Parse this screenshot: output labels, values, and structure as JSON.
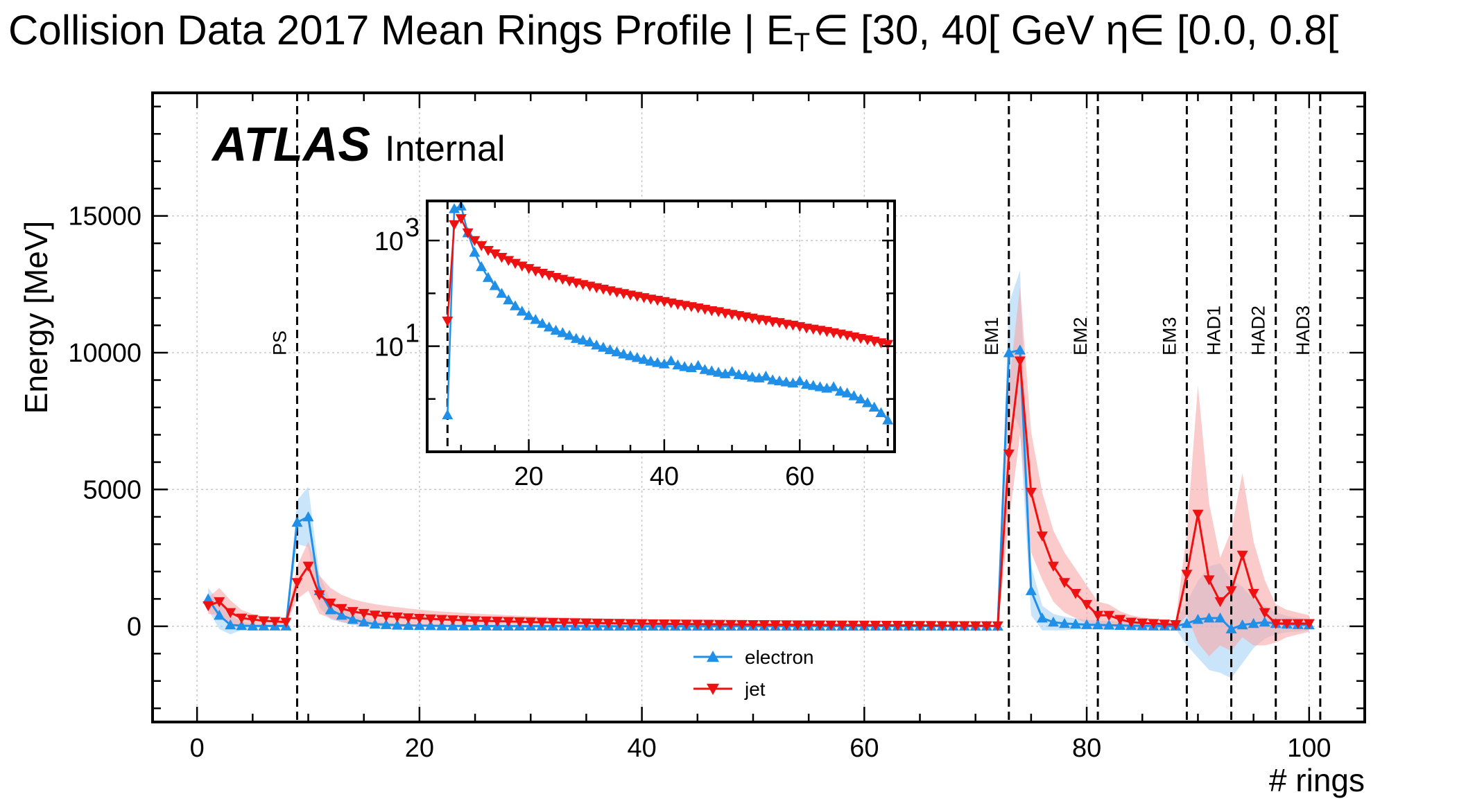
{
  "chart_data": {
    "type": "line",
    "title_main": "Collision Data 2017 Mean Rings Profile | E",
    "title_sub": "T",
    "title_rest": "∈ [30, 40[ GeV η∈ [0.0, 0.8[",
    "xlabel": "# rings",
    "ylabel": "Energy [MeV]",
    "xlim": [
      -4,
      105
    ],
    "ylim": [
      -3500,
      19500
    ],
    "xticks": [
      0,
      20,
      40,
      60,
      80,
      100
    ],
    "yticks": [
      0,
      5000,
      10000,
      15000
    ],
    "grid": true,
    "legend": "bottom-center",
    "branding": {
      "atlas": "ATLAS",
      "status": "Internal"
    },
    "regions": [
      {
        "label": "PS",
        "x": 9
      },
      {
        "label": "EM1",
        "x": 73
      },
      {
        "label": "EM2",
        "x": 81
      },
      {
        "label": "EM3",
        "x": 89
      },
      {
        "label": "HAD1",
        "x": 93
      },
      {
        "label": "HAD2",
        "x": 97
      },
      {
        "label": "HAD3",
        "x": 101
      }
    ],
    "series": [
      {
        "name": "electron",
        "color": "#1f8fe8",
        "band_color": "#a6d2f7",
        "marker": "triangle-up",
        "x": [
          1,
          2,
          3,
          4,
          5,
          6,
          7,
          8,
          9,
          10,
          11,
          12,
          13,
          14,
          15,
          16,
          17,
          18,
          19,
          20,
          21,
          22,
          23,
          24,
          25,
          26,
          27,
          28,
          29,
          30,
          31,
          32,
          33,
          34,
          35,
          36,
          37,
          38,
          39,
          40,
          41,
          42,
          43,
          44,
          45,
          46,
          47,
          48,
          49,
          50,
          51,
          52,
          53,
          54,
          55,
          56,
          57,
          58,
          59,
          60,
          61,
          62,
          63,
          64,
          65,
          66,
          67,
          68,
          69,
          70,
          71,
          72,
          73,
          74,
          75,
          76,
          77,
          78,
          79,
          80,
          81,
          82,
          83,
          84,
          85,
          86,
          87,
          88,
          89,
          90,
          91,
          92,
          93,
          94,
          95,
          96,
          97,
          98,
          99,
          100
        ],
        "y": [
          1000,
          400,
          50,
          20,
          10,
          10,
          10,
          10,
          3800,
          4000,
          1300,
          600,
          400,
          250,
          150,
          80,
          60,
          40,
          30,
          25,
          20,
          15,
          12,
          10,
          8,
          8,
          7,
          6,
          5,
          5,
          5,
          4,
          4,
          4,
          3,
          3,
          3,
          3,
          3,
          3,
          3,
          2,
          2,
          2,
          2,
          2,
          2,
          2,
          2,
          2,
          2,
          2,
          2,
          2,
          2,
          2,
          2,
          2,
          2,
          2,
          2,
          2,
          2,
          2,
          2,
          2,
          2,
          2,
          2,
          2,
          2,
          2,
          10000,
          10100,
          1300,
          300,
          150,
          100,
          80,
          60,
          50,
          40,
          30,
          20,
          15,
          10,
          8,
          5,
          100,
          250,
          300,
          300,
          -100,
          50,
          100,
          150,
          100,
          80,
          60,
          50
        ],
        "err": [
          400,
          500,
          350,
          150,
          80,
          50,
          40,
          40,
          800,
          1100,
          600,
          350,
          250,
          200,
          150,
          100,
          80,
          60,
          50,
          45,
          40,
          35,
          30,
          28,
          25,
          22,
          20,
          18,
          16,
          15,
          14,
          13,
          12,
          12,
          11,
          11,
          10,
          10,
          10,
          10,
          10,
          9,
          9,
          9,
          9,
          9,
          9,
          9,
          9,
          9,
          9,
          9,
          9,
          9,
          9,
          9,
          9,
          9,
          9,
          9,
          9,
          9,
          9,
          9,
          9,
          9,
          9,
          9,
          9,
          9,
          9,
          9,
          1800,
          2900,
          900,
          450,
          300,
          250,
          200,
          180,
          160,
          150,
          140,
          130,
          120,
          110,
          100,
          100,
          800,
          1400,
          1900,
          2000,
          1800,
          1400,
          900,
          600,
          400,
          300,
          250,
          200
        ]
      },
      {
        "name": "jet",
        "color": "#ee1111",
        "band_color": "#f9a9a9",
        "marker": "triangle-down",
        "x": [
          1,
          2,
          3,
          4,
          5,
          6,
          7,
          8,
          9,
          10,
          11,
          12,
          13,
          14,
          15,
          16,
          17,
          18,
          19,
          20,
          21,
          22,
          23,
          24,
          25,
          26,
          27,
          28,
          29,
          30,
          31,
          32,
          33,
          34,
          35,
          36,
          37,
          38,
          39,
          40,
          41,
          42,
          43,
          44,
          45,
          46,
          47,
          48,
          49,
          50,
          51,
          52,
          53,
          54,
          55,
          56,
          57,
          58,
          59,
          60,
          61,
          62,
          63,
          64,
          65,
          66,
          67,
          68,
          69,
          70,
          71,
          72,
          73,
          74,
          75,
          76,
          77,
          78,
          79,
          80,
          81,
          82,
          83,
          84,
          85,
          86,
          87,
          88,
          89,
          90,
          91,
          92,
          93,
          94,
          95,
          96,
          97,
          98,
          99,
          100
        ],
        "y": [
          750,
          900,
          500,
          300,
          250,
          200,
          180,
          150,
          1600,
          2200,
          1150,
          850,
          650,
          540,
          470,
          410,
          370,
          340,
          310,
          290,
          270,
          250,
          235,
          220,
          205,
          195,
          185,
          175,
          165,
          155,
          148,
          140,
          133,
          127,
          121,
          115,
          110,
          105,
          100,
          95,
          91,
          87,
          83,
          80,
          77,
          74,
          71,
          68,
          65,
          62,
          60,
          57,
          55,
          53,
          51,
          49,
          47,
          45,
          43,
          41,
          39,
          37,
          35,
          33,
          31,
          29,
          27,
          25,
          23,
          21,
          19,
          17,
          6300,
          9700,
          4900,
          3300,
          2200,
          1600,
          1200,
          800,
          400,
          400,
          250,
          150,
          120,
          100,
          80,
          60,
          1900,
          4100,
          1700,
          900,
          1300,
          2600,
          1200,
          500,
          100,
          100,
          100,
          100
        ],
        "err": [
          300,
          500,
          450,
          300,
          200,
          150,
          120,
          100,
          600,
          900,
          700,
          550,
          500,
          450,
          420,
          400,
          380,
          360,
          340,
          320,
          300,
          290,
          280,
          270,
          260,
          250,
          240,
          230,
          220,
          210,
          200,
          195,
          190,
          185,
          180,
          175,
          170,
          165,
          160,
          155,
          150,
          145,
          140,
          135,
          130,
          125,
          120,
          115,
          110,
          105,
          100,
          95,
          90,
          85,
          80,
          75,
          70,
          65,
          60,
          55,
          50,
          48,
          46,
          44,
          42,
          40,
          38,
          36,
          34,
          32,
          30,
          28,
          2500,
          2700,
          2200,
          1600,
          1300,
          1100,
          900,
          700,
          500,
          400,
          300,
          250,
          200,
          180,
          160,
          150,
          1500,
          4700,
          2800,
          1600,
          2200,
          3000,
          1900,
          1200,
          700,
          500,
          400,
          300
        ]
      }
    ],
    "inset": {
      "scale": "log",
      "xlim": [
        5,
        74
      ],
      "ylim_log10": [
        -1,
        3.75
      ],
      "xticks": [
        20,
        40,
        60
      ],
      "yticks": [
        {
          "base": "10",
          "exp": "3",
          "value_log10": 3
        },
        {
          "base": "10",
          "exp": "1",
          "value_log10": 1
        }
      ],
      "region_lines": [
        8,
        73
      ],
      "electron_points": [
        [
          8,
          0.5
        ],
        [
          9,
          4000
        ],
        [
          10,
          4500
        ],
        [
          11,
          1400
        ],
        [
          12,
          600
        ],
        [
          13,
          320
        ],
        [
          14,
          200
        ],
        [
          15,
          140
        ],
        [
          16,
          100
        ],
        [
          17,
          75
        ],
        [
          18,
          58
        ],
        [
          19,
          46
        ],
        [
          20,
          38
        ],
        [
          21,
          32
        ],
        [
          22,
          27
        ],
        [
          23,
          23
        ],
        [
          24,
          20
        ],
        [
          25,
          18
        ],
        [
          26,
          16
        ],
        [
          27,
          14
        ],
        [
          28,
          13
        ],
        [
          29,
          12
        ],
        [
          30,
          10.5
        ],
        [
          31,
          9.5
        ],
        [
          32,
          8.6
        ],
        [
          33,
          7.8
        ],
        [
          34,
          7.1
        ],
        [
          35,
          6.6
        ],
        [
          36,
          6.1
        ],
        [
          37,
          5.6
        ],
        [
          38,
          5.2
        ],
        [
          39,
          4.9
        ],
        [
          40,
          4.6
        ],
        [
          41,
          5.3
        ],
        [
          42,
          4.4
        ],
        [
          43,
          4.1
        ],
        [
          44,
          3.9
        ],
        [
          45,
          4.3
        ],
        [
          46,
          3.6
        ],
        [
          47,
          3.4
        ],
        [
          48,
          3.2
        ],
        [
          49,
          3.0
        ],
        [
          50,
          3.3
        ],
        [
          51,
          2.9
        ],
        [
          52,
          2.8
        ],
        [
          53,
          2.6
        ],
        [
          54,
          2.5
        ],
        [
          55,
          2.7
        ],
        [
          56,
          2.3
        ],
        [
          57,
          2.2
        ],
        [
          58,
          2.1
        ],
        [
          59,
          2.0
        ],
        [
          60,
          2.2
        ],
        [
          61,
          1.9
        ],
        [
          62,
          1.8
        ],
        [
          63,
          1.7
        ],
        [
          64,
          1.6
        ],
        [
          65,
          1.7
        ],
        [
          66,
          1.4
        ],
        [
          67,
          1.3
        ],
        [
          68,
          1.15
        ],
        [
          69,
          1.0
        ],
        [
          70,
          0.85
        ],
        [
          71,
          0.7
        ],
        [
          72,
          0.55
        ],
        [
          73,
          0.4
        ]
      ],
      "jet_points": [
        [
          8,
          30
        ],
        [
          9,
          2000
        ],
        [
          10,
          2600
        ],
        [
          11,
          1400
        ],
        [
          12,
          1000
        ],
        [
          13,
          800
        ],
        [
          14,
          650
        ],
        [
          15,
          560
        ],
        [
          16,
          480
        ],
        [
          17,
          420
        ],
        [
          18,
          370
        ],
        [
          19,
          330
        ],
        [
          20,
          295
        ],
        [
          21,
          265
        ],
        [
          22,
          240
        ],
        [
          23,
          220
        ],
        [
          24,
          200
        ],
        [
          25,
          185
        ],
        [
          26,
          170
        ],
        [
          27,
          158
        ],
        [
          28,
          147
        ],
        [
          29,
          137
        ],
        [
          30,
          128
        ],
        [
          31,
          120
        ],
        [
          32,
          112
        ],
        [
          33,
          105
        ],
        [
          34,
          99
        ],
        [
          35,
          93
        ],
        [
          36,
          88
        ],
        [
          37,
          83
        ],
        [
          38,
          78
        ],
        [
          39,
          74
        ],
        [
          40,
          70
        ],
        [
          41,
          66
        ],
        [
          42,
          62
        ],
        [
          43,
          59
        ],
        [
          44,
          56
        ],
        [
          45,
          53
        ],
        [
          46,
          50
        ],
        [
          47,
          47
        ],
        [
          48,
          45
        ],
        [
          49,
          42
        ],
        [
          50,
          40
        ],
        [
          51,
          38
        ],
        [
          52,
          36
        ],
        [
          53,
          34
        ],
        [
          54,
          32
        ],
        [
          55,
          31
        ],
        [
          56,
          29
        ],
        [
          57,
          28
        ],
        [
          58,
          26
        ],
        [
          59,
          25
        ],
        [
          60,
          23.5
        ],
        [
          61,
          22
        ],
        [
          62,
          21
        ],
        [
          63,
          20
        ],
        [
          64,
          19
        ],
        [
          65,
          18
        ],
        [
          66,
          17
        ],
        [
          67,
          16
        ],
        [
          68,
          15
        ],
        [
          69,
          14
        ],
        [
          70,
          13.2
        ],
        [
          71,
          12.4
        ],
        [
          72,
          11.6
        ],
        [
          73,
          10.8
        ]
      ]
    }
  }
}
